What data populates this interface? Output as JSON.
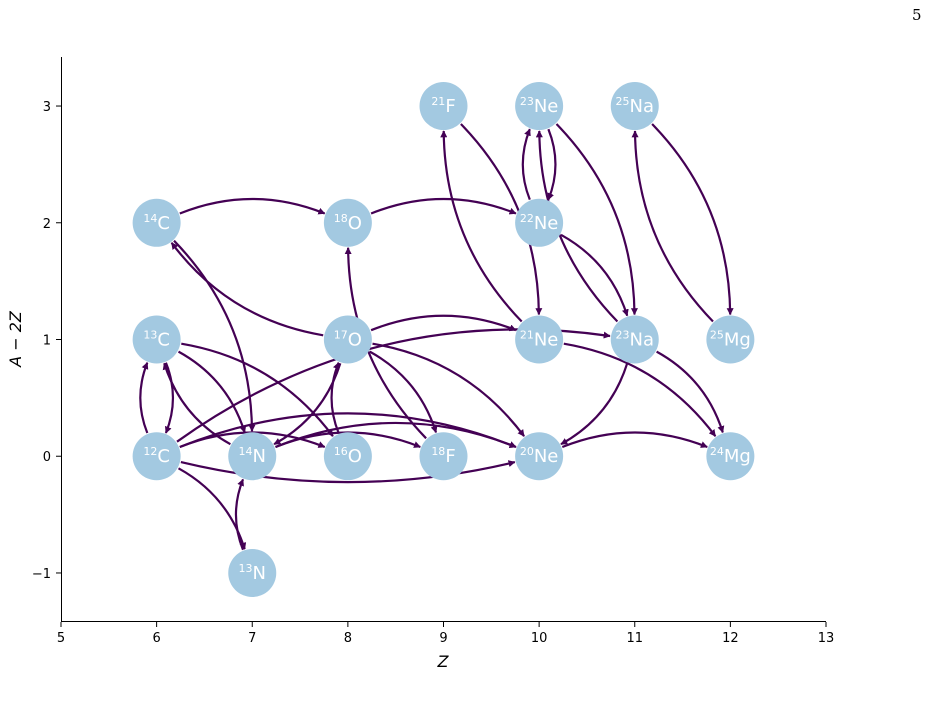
{
  "page_number": "5",
  "diagram": {
    "xlabel": "Z",
    "ylabel": "A − 2Z",
    "xlim": [
      5,
      13
    ],
    "ylim": [
      -1.42,
      3.42
    ],
    "x_ticks": [
      5,
      6,
      7,
      8,
      9,
      10,
      11,
      12,
      13
    ],
    "y_ticks": [
      -1,
      0,
      1,
      2,
      3
    ],
    "y_tick_labels": [
      "−1",
      "0",
      "1",
      "2",
      "3"
    ],
    "colors": {
      "node": "#a3c9e1",
      "edge": "#440154",
      "axis": "#000000",
      "label": "#ffffff"
    },
    "nuclides": [
      {
        "id": "c12",
        "mass": "12",
        "symbol": "C",
        "z": 6,
        "n_minus_z": 0
      },
      {
        "id": "c13",
        "mass": "13",
        "symbol": "C",
        "z": 6,
        "n_minus_z": 1
      },
      {
        "id": "c14",
        "mass": "14",
        "symbol": "C",
        "z": 6,
        "n_minus_z": 2
      },
      {
        "id": "n13",
        "mass": "13",
        "symbol": "N",
        "z": 7,
        "n_minus_z": -1
      },
      {
        "id": "n14",
        "mass": "14",
        "symbol": "N",
        "z": 7,
        "n_minus_z": 0
      },
      {
        "id": "o16",
        "mass": "16",
        "symbol": "O",
        "z": 8,
        "n_minus_z": 0
      },
      {
        "id": "o17",
        "mass": "17",
        "symbol": "O",
        "z": 8,
        "n_minus_z": 1
      },
      {
        "id": "o18",
        "mass": "18",
        "symbol": "O",
        "z": 8,
        "n_minus_z": 2
      },
      {
        "id": "f18",
        "mass": "18",
        "symbol": "F",
        "z": 9,
        "n_minus_z": 0
      },
      {
        "id": "f21",
        "mass": "21",
        "symbol": "F",
        "z": 9,
        "n_minus_z": 3
      },
      {
        "id": "ne20",
        "mass": "20",
        "symbol": "Ne",
        "z": 10,
        "n_minus_z": 0
      },
      {
        "id": "ne21",
        "mass": "21",
        "symbol": "Ne",
        "z": 10,
        "n_minus_z": 1
      },
      {
        "id": "ne22",
        "mass": "22",
        "symbol": "Ne",
        "z": 10,
        "n_minus_z": 2
      },
      {
        "id": "ne23",
        "mass": "23",
        "symbol": "Ne",
        "z": 10,
        "n_minus_z": 3
      },
      {
        "id": "na23",
        "mass": "23",
        "symbol": "Na",
        "z": 11,
        "n_minus_z": 1
      },
      {
        "id": "na25",
        "mass": "25",
        "symbol": "Na",
        "z": 11,
        "n_minus_z": 3
      },
      {
        "id": "mg24",
        "mass": "24",
        "symbol": "Mg",
        "z": 12,
        "n_minus_z": 0
      },
      {
        "id": "mg25",
        "mass": "25",
        "symbol": "Mg",
        "z": 12,
        "n_minus_z": 1
      }
    ],
    "links": [
      {
        "from": "c12",
        "to": "c13"
      },
      {
        "from": "c13",
        "to": "c12"
      },
      {
        "from": "c12",
        "to": "n13"
      },
      {
        "from": "n13",
        "to": "n14"
      },
      {
        "from": "c12",
        "to": "o16"
      },
      {
        "from": "c12",
        "to": "ne20"
      },
      {
        "from": "c12",
        "to": "ne20",
        "alt": true
      },
      {
        "from": "c12",
        "to": "na23"
      },
      {
        "from": "c13",
        "to": "n14"
      },
      {
        "from": "n14",
        "to": "c13"
      },
      {
        "from": "c13",
        "to": "o16"
      },
      {
        "from": "c14",
        "to": "n14"
      },
      {
        "from": "c14",
        "to": "o18"
      },
      {
        "from": "o17",
        "to": "c14"
      },
      {
        "from": "n14",
        "to": "f18"
      },
      {
        "from": "n14",
        "to": "ne20"
      },
      {
        "from": "o16",
        "to": "o17"
      },
      {
        "from": "o17",
        "to": "n14"
      },
      {
        "from": "o17",
        "to": "f18"
      },
      {
        "from": "o17",
        "to": "ne21"
      },
      {
        "from": "o17",
        "to": "ne20"
      },
      {
        "from": "f18",
        "to": "o18"
      },
      {
        "from": "o18",
        "to": "ne22"
      },
      {
        "from": "f21",
        "to": "ne21"
      },
      {
        "from": "ne21",
        "to": "f21"
      },
      {
        "from": "ne21",
        "to": "mg24"
      },
      {
        "from": "ne22",
        "to": "ne23"
      },
      {
        "from": "ne23",
        "to": "ne22"
      },
      {
        "from": "ne22",
        "to": "na23"
      },
      {
        "from": "ne23",
        "to": "na23"
      },
      {
        "from": "na23",
        "to": "ne23"
      },
      {
        "from": "na23",
        "to": "ne20"
      },
      {
        "from": "na23",
        "to": "mg24"
      },
      {
        "from": "ne20",
        "to": "mg24"
      },
      {
        "from": "na25",
        "to": "mg25"
      },
      {
        "from": "mg25",
        "to": "na25"
      }
    ]
  }
}
